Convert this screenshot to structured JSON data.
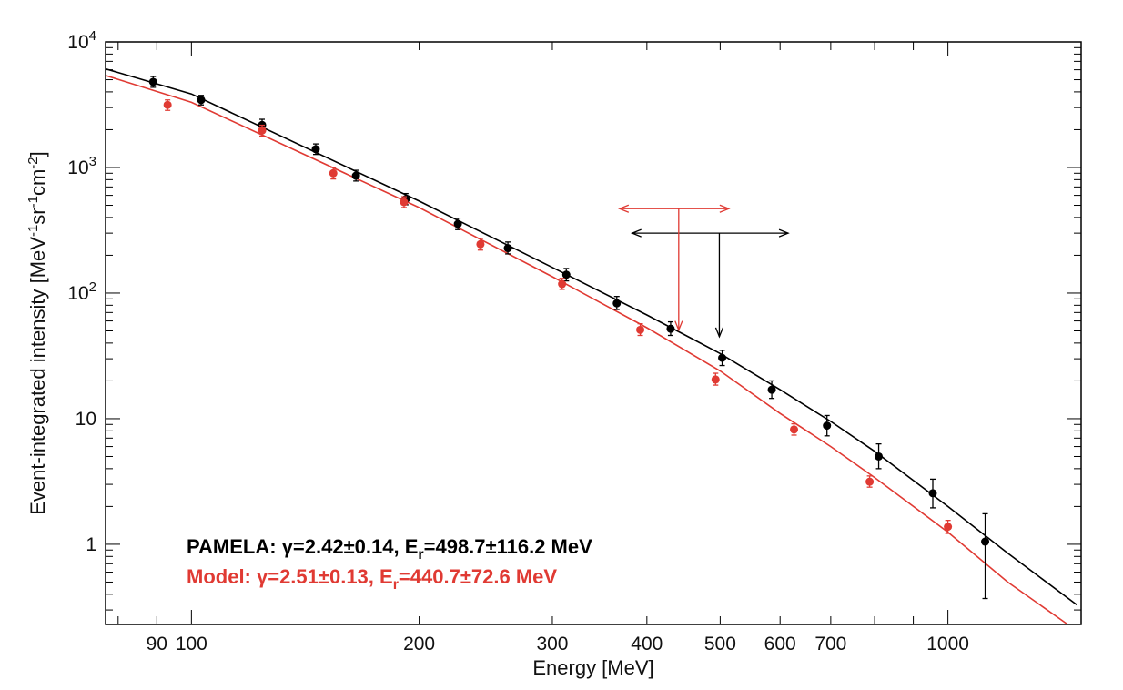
{
  "chart_data": {
    "type": "scatter",
    "title": "",
    "xlabel": "Energy [MeV]",
    "ylabel": {
      "main": "Event-integrated intensity [MeV",
      "exp1": "-1",
      "unit2": "sr",
      "exp2": "-1",
      "unit3": "cm",
      "exp3": "-2",
      "close": "]"
    },
    "x_scale": "log",
    "y_scale": "log",
    "xlim": [
      77,
      1500
    ],
    "ylim": [
      0.23,
      10000
    ],
    "x_ticks": [
      {
        "value": 90,
        "label": "90"
      },
      {
        "value": 100,
        "label": "100"
      },
      {
        "value": 200,
        "label": "200"
      },
      {
        "value": 300,
        "label": "300"
      },
      {
        "value": 400,
        "label": "400"
      },
      {
        "value": 500,
        "label": "500"
      },
      {
        "value": 600,
        "label": "600"
      },
      {
        "value": 700,
        "label": "700"
      },
      {
        "value": 1000,
        "label": "1000"
      }
    ],
    "y_ticks": [
      {
        "value": 1,
        "base": "1",
        "exp": ""
      },
      {
        "value": 10,
        "base": "10",
        "exp": ""
      },
      {
        "value": 100,
        "base": "10",
        "exp": "2"
      },
      {
        "value": 1000,
        "base": "10",
        "exp": "3"
      },
      {
        "value": 10000,
        "base": "10",
        "exp": "4"
      }
    ],
    "grid": false,
    "series": [
      {
        "name": "PAMELA",
        "color": "#000000",
        "points": [
          {
            "x": 89,
            "y": 4800,
            "lo": 4350,
            "hi": 5300
          },
          {
            "x": 103,
            "y": 3450,
            "lo": 3150,
            "hi": 3750
          },
          {
            "x": 124,
            "y": 2180,
            "lo": 1970,
            "hi": 2420
          },
          {
            "x": 146,
            "y": 1400,
            "lo": 1270,
            "hi": 1540
          },
          {
            "x": 165,
            "y": 860,
            "lo": 780,
            "hi": 950
          },
          {
            "x": 192,
            "y": 560,
            "lo": 505,
            "hi": 620
          },
          {
            "x": 225,
            "y": 355,
            "lo": 320,
            "hi": 395
          },
          {
            "x": 262,
            "y": 228,
            "lo": 205,
            "hi": 255
          },
          {
            "x": 313,
            "y": 140,
            "lo": 125,
            "hi": 157
          },
          {
            "x": 365,
            "y": 83,
            "lo": 74,
            "hi": 94
          },
          {
            "x": 430,
            "y": 52,
            "lo": 46,
            "hi": 59
          },
          {
            "x": 503,
            "y": 30.5,
            "lo": 26.5,
            "hi": 35
          },
          {
            "x": 585,
            "y": 17,
            "lo": 14.5,
            "hi": 20
          },
          {
            "x": 692,
            "y": 8.8,
            "lo": 7.3,
            "hi": 10.6
          },
          {
            "x": 810,
            "y": 5.0,
            "lo": 4.0,
            "hi": 6.3
          },
          {
            "x": 955,
            "y": 2.55,
            "lo": 1.95,
            "hi": 3.3
          },
          {
            "x": 1120,
            "y": 1.05,
            "lo": 0.37,
            "hi": 1.75
          }
        ],
        "fit_curve": [
          {
            "x": 77,
            "y": 6100
          },
          {
            "x": 100,
            "y": 3850
          },
          {
            "x": 200,
            "y": 540
          },
          {
            "x": 300,
            "y": 160
          },
          {
            "x": 400,
            "y": 67
          },
          {
            "x": 500,
            "y": 33
          },
          {
            "x": 600,
            "y": 17
          },
          {
            "x": 700,
            "y": 9.5
          },
          {
            "x": 800,
            "y": 5.5
          },
          {
            "x": 1000,
            "y": 2.0
          },
          {
            "x": 1200,
            "y": 0.85
          },
          {
            "x": 1480,
            "y": 0.33
          }
        ],
        "rollover": {
          "energy": 498.7,
          "lo": 382.5,
          "hi": 614.9,
          "bar_y": 300
        }
      },
      {
        "name": "Model",
        "color": "#e03a33",
        "points": [
          {
            "x": 93,
            "y": 3150,
            "lo": 2850,
            "hi": 3450
          },
          {
            "x": 124,
            "y": 1970,
            "lo": 1780,
            "hi": 2170
          },
          {
            "x": 154,
            "y": 900,
            "lo": 810,
            "hi": 1000
          },
          {
            "x": 191,
            "y": 530,
            "lo": 480,
            "hi": 585
          },
          {
            "x": 241,
            "y": 245,
            "lo": 220,
            "hi": 272
          },
          {
            "x": 309,
            "y": 118,
            "lo": 107,
            "hi": 131
          },
          {
            "x": 392,
            "y": 51,
            "lo": 46,
            "hi": 57
          },
          {
            "x": 493,
            "y": 20.5,
            "lo": 18.5,
            "hi": 23
          },
          {
            "x": 626,
            "y": 8.2,
            "lo": 7.4,
            "hi": 9.1
          },
          {
            "x": 788,
            "y": 3.15,
            "lo": 2.85,
            "hi": 3.5
          },
          {
            "x": 1000,
            "y": 1.38,
            "lo": 1.22,
            "hi": 1.55
          }
        ],
        "fit_curve": [
          {
            "x": 77,
            "y": 5400
          },
          {
            "x": 100,
            "y": 3300
          },
          {
            "x": 200,
            "y": 480
          },
          {
            "x": 300,
            "y": 135
          },
          {
            "x": 400,
            "y": 53
          },
          {
            "x": 500,
            "y": 24
          },
          {
            "x": 600,
            "y": 11
          },
          {
            "x": 700,
            "y": 6.0
          },
          {
            "x": 800,
            "y": 3.4
          },
          {
            "x": 1000,
            "y": 1.25
          },
          {
            "x": 1200,
            "y": 0.5
          },
          {
            "x": 1440,
            "y": 0.23
          }
        ],
        "rollover": {
          "energy": 440.7,
          "lo": 368.1,
          "hi": 513.3,
          "bar_y": 470
        }
      }
    ],
    "annotations": [
      {
        "series": "PAMELA",
        "color": "#000000",
        "prefix": "PAMELA: γ=2.42±0.14, E",
        "sub": "r",
        "suffix": "=498.7±116.2 MeV"
      },
      {
        "series": "Model",
        "color": "#e03a33",
        "prefix": "Model: γ=2.51±0.13, E",
        "sub": "r",
        "suffix": "=440.7±72.6 MeV"
      }
    ]
  }
}
